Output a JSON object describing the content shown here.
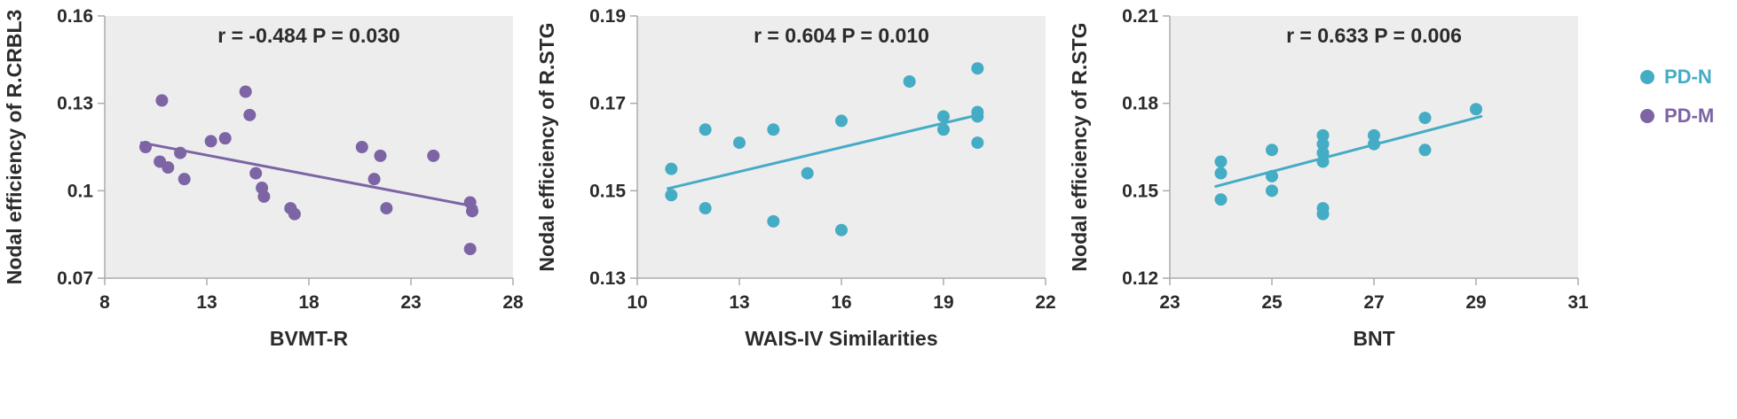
{
  "style": {
    "plot_bg": "#EDEDED",
    "axis_color": "#ABABAB",
    "text_color": "#2B2B2B"
  },
  "legend": {
    "items": [
      {
        "label": "PD-N",
        "color": "#45ACC5"
      },
      {
        "label": "PD-M",
        "color": "#7C64A5"
      }
    ]
  },
  "chart_data": [
    {
      "type": "scatter",
      "series": "PD-M",
      "color": "#7C64A5",
      "annotation": "r = -0.484 P = 0.030",
      "xlabel": "BVMT-R",
      "ylabel": "Nodal efficiency of R.CRBL3",
      "xlim": [
        8,
        28
      ],
      "ylim": [
        0.07,
        0.16
      ],
      "xticks": [
        [
          8,
          "8"
        ],
        [
          13,
          "13"
        ],
        [
          18,
          "18"
        ],
        [
          23,
          "23"
        ],
        [
          28,
          "28"
        ]
      ],
      "yticks": [
        [
          0.07,
          "0.07"
        ],
        [
          0.1,
          "0.1"
        ],
        [
          0.13,
          "0.13"
        ],
        [
          0.16,
          "0.16"
        ]
      ],
      "grid": false,
      "points": [
        [
          10.0,
          0.115
        ],
        [
          10.8,
          0.131
        ],
        [
          10.7,
          0.11
        ],
        [
          11.1,
          0.108
        ],
        [
          11.7,
          0.113
        ],
        [
          11.9,
          0.104
        ],
        [
          13.2,
          0.117
        ],
        [
          13.9,
          0.118
        ],
        [
          14.9,
          0.134
        ],
        [
          15.1,
          0.126
        ],
        [
          15.4,
          0.106
        ],
        [
          15.7,
          0.101
        ],
        [
          15.8,
          0.098
        ],
        [
          17.1,
          0.094
        ],
        [
          17.3,
          0.092
        ],
        [
          20.6,
          0.115
        ],
        [
          21.2,
          0.104
        ],
        [
          21.5,
          0.112
        ],
        [
          21.8,
          0.094
        ],
        [
          24.1,
          0.112
        ],
        [
          25.9,
          0.096
        ],
        [
          26.0,
          0.093
        ],
        [
          25.9,
          0.08
        ]
      ],
      "trend": [
        [
          9.8,
          0.1165
        ],
        [
          26.2,
          0.0945
        ]
      ]
    },
    {
      "type": "scatter",
      "series": "PD-N",
      "color": "#45ACC5",
      "annotation": "r = 0.604 P = 0.010",
      "xlabel": "WAIS-IV Similarities",
      "ylabel": "Nodal efficiency of R.STG",
      "xlim": [
        10,
        22
      ],
      "ylim": [
        0.13,
        0.19
      ],
      "xticks": [
        [
          10,
          "10"
        ],
        [
          13,
          "13"
        ],
        [
          16,
          "16"
        ],
        [
          19,
          "19"
        ],
        [
          22,
          "22"
        ]
      ],
      "yticks": [
        [
          0.13,
          "0.13"
        ],
        [
          0.15,
          "0.15"
        ],
        [
          0.17,
          "0.17"
        ],
        [
          0.19,
          "0.19"
        ]
      ],
      "grid": false,
      "points": [
        [
          11,
          0.155
        ],
        [
          11,
          0.149
        ],
        [
          12,
          0.164
        ],
        [
          12,
          0.146
        ],
        [
          13,
          0.161
        ],
        [
          14,
          0.164
        ],
        [
          14,
          0.143
        ],
        [
          15,
          0.154
        ],
        [
          16,
          0.166
        ],
        [
          16,
          0.141
        ],
        [
          18,
          0.175
        ],
        [
          19,
          0.167
        ],
        [
          19,
          0.164
        ],
        [
          20,
          0.178
        ],
        [
          20,
          0.168
        ],
        [
          20,
          0.167
        ],
        [
          20,
          0.161
        ]
      ],
      "trend": [
        [
          10.9,
          0.1505
        ],
        [
          20.1,
          0.1675
        ]
      ]
    },
    {
      "type": "scatter",
      "series": "PD-N",
      "color": "#45ACC5",
      "annotation": "r = 0.633 P = 0.006",
      "xlabel": "BNT",
      "ylabel": "Nodal efficiency of R.STG",
      "xlim": [
        23,
        31
      ],
      "ylim": [
        0.12,
        0.21
      ],
      "xticks": [
        [
          23,
          "23"
        ],
        [
          25,
          "25"
        ],
        [
          27,
          "27"
        ],
        [
          29,
          "29"
        ],
        [
          31,
          "31"
        ]
      ],
      "yticks": [
        [
          0.12,
          "0.12"
        ],
        [
          0.15,
          "0.15"
        ],
        [
          0.18,
          "0.18"
        ],
        [
          0.21,
          "0.21"
        ]
      ],
      "grid": false,
      "points": [
        [
          24,
          0.16
        ],
        [
          24,
          0.156
        ],
        [
          24,
          0.147
        ],
        [
          25,
          0.164
        ],
        [
          25,
          0.155
        ],
        [
          25,
          0.15
        ],
        [
          26,
          0.169
        ],
        [
          26,
          0.166
        ],
        [
          26,
          0.163
        ],
        [
          26,
          0.16
        ],
        [
          26,
          0.144
        ],
        [
          26,
          0.142
        ],
        [
          27,
          0.169
        ],
        [
          27,
          0.166
        ],
        [
          28,
          0.175
        ],
        [
          28,
          0.164
        ],
        [
          29,
          0.178
        ]
      ],
      "trend": [
        [
          23.9,
          0.1515
        ],
        [
          29.1,
          0.1755
        ]
      ]
    }
  ]
}
